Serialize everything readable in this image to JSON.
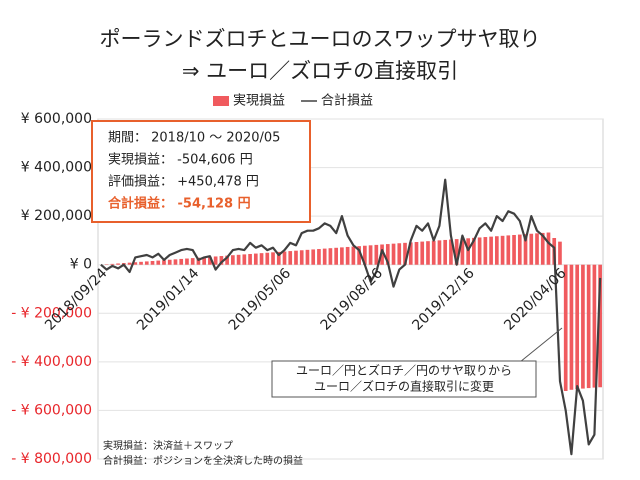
{
  "chart_data": {
    "type": "bar_line",
    "title": [
      "ポーランドズロチとユーロのスワップサヤ取り",
      "⇒ ユーロ／ズロチの直接取引"
    ],
    "categories": [
      "2018/09/24",
      null,
      null,
      null,
      null,
      null,
      null,
      null,
      null,
      null,
      null,
      null,
      null,
      null,
      null,
      null,
      "2019/01/14",
      null,
      null,
      null,
      null,
      null,
      null,
      null,
      null,
      null,
      null,
      null,
      null,
      null,
      null,
      null,
      "2019/05/06",
      null,
      null,
      null,
      null,
      null,
      null,
      null,
      null,
      null,
      null,
      null,
      null,
      null,
      null,
      null,
      "2019/08/26",
      null,
      null,
      null,
      null,
      null,
      null,
      null,
      null,
      null,
      null,
      null,
      null,
      null,
      null,
      null,
      "2019/12/16",
      null,
      null,
      null,
      null,
      null,
      null,
      null,
      null,
      null,
      null,
      null,
      null,
      null,
      null,
      null,
      "2020/04/06",
      null,
      null,
      null,
      null,
      null,
      null,
      null
    ],
    "series": [
      {
        "name": "実現損益",
        "type": "bar",
        "color": "#f05a5e",
        "values": [
          0,
          1700,
          3400,
          5100,
          6800,
          8500,
          10200,
          11900,
          13600,
          15300,
          17000,
          18700,
          20400,
          22100,
          23800,
          25500,
          27200,
          28900,
          30600,
          32300,
          34000,
          35700,
          37400,
          39100,
          40800,
          42500,
          44200,
          45900,
          47600,
          49300,
          51000,
          52700,
          54400,
          56100,
          57800,
          59500,
          61200,
          62900,
          64600,
          66300,
          68000,
          69700,
          71400,
          73100,
          74800,
          76500,
          78200,
          79900,
          81600,
          83300,
          85000,
          86700,
          88400,
          90100,
          91800,
          93500,
          95200,
          96900,
          98600,
          100300,
          102000,
          103700,
          105400,
          107100,
          108800,
          110500,
          112200,
          113900,
          115600,
          117300,
          119000,
          120700,
          122400,
          124100,
          125800,
          127500,
          129200,
          130900,
          132600,
          110000,
          95000,
          -520000,
          -515000,
          -512000,
          -510000,
          -508000,
          -506000,
          -504606
        ]
      },
      {
        "name": "合計損益",
        "type": "line",
        "color": "#404040",
        "values": [
          0,
          -20000,
          -5000,
          -15000,
          0,
          -30000,
          30000,
          35000,
          40000,
          30000,
          45000,
          20000,
          40000,
          50000,
          60000,
          65000,
          60000,
          20000,
          30000,
          35000,
          -20000,
          10000,
          30000,
          60000,
          65000,
          60000,
          90000,
          70000,
          80000,
          60000,
          70000,
          40000,
          60000,
          90000,
          80000,
          130000,
          140000,
          140000,
          150000,
          170000,
          160000,
          130000,
          200000,
          120000,
          80000,
          60000,
          0,
          -70000,
          -30000,
          60000,
          10000,
          -90000,
          -20000,
          0,
          100000,
          160000,
          140000,
          170000,
          100000,
          160000,
          350000,
          120000,
          0,
          120000,
          60000,
          100000,
          150000,
          170000,
          140000,
          200000,
          180000,
          220000,
          210000,
          180000,
          100000,
          200000,
          140000,
          120000,
          90000,
          70000,
          -480000,
          -600000,
          -780000,
          -500000,
          -560000,
          -740000,
          -700000,
          -54128
        ]
      }
    ],
    "ylim": [
      -800000,
      600000
    ],
    "yticks": [
      {
        "value": 600000,
        "label": "¥ 600,000"
      },
      {
        "value": 400000,
        "label": "¥ 400,000"
      },
      {
        "value": 200000,
        "label": "¥ 200,000"
      },
      {
        "value": 0,
        "label": "¥ 0"
      },
      {
        "value": -200000,
        "label": "- ¥ 200,000"
      },
      {
        "value": -400000,
        "label": "- ¥ 400,000"
      },
      {
        "value": -600000,
        "label": "- ¥ 600,000"
      },
      {
        "value": -800000,
        "label": "- ¥ 800,000"
      }
    ],
    "grid": true,
    "info_box": [
      "期間： 2018/10 ～ 2020/05",
      "実現損益： -504,606 円",
      "評価損益： +450,478 円",
      "合計損益： -54,128 円"
    ],
    "callout": [
      "ユーロ／円とズロチ／円のサヤ取りから",
      "ユーロ／ズロチの直接取引に変更"
    ],
    "footnotes": [
      "実現損益：決済益＋スワップ",
      "合計損益：ポジションを全決済した時の損益"
    ]
  }
}
